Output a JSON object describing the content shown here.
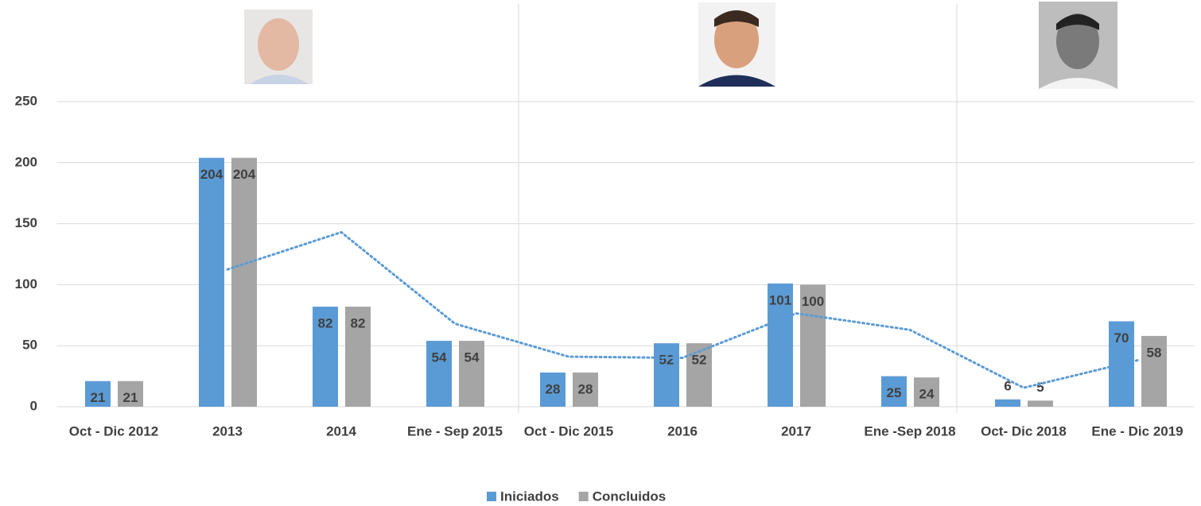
{
  "chart_data": {
    "type": "bar",
    "categories": [
      "Oct - Dic 2012",
      "2013",
      "2014",
      "Ene - Sep 2015",
      "Oct - Dic 2015",
      "2016",
      "2017",
      "Ene -Sep 2018",
      "Oct- Dic 2018",
      "Ene - Dic 2019"
    ],
    "series": [
      {
        "name": "Iniciados",
        "color": "#5b9bd5",
        "values": [
          21,
          204,
          82,
          54,
          28,
          52,
          101,
          25,
          6,
          70
        ]
      },
      {
        "name": "Concluidos",
        "color": "#a5a5a5",
        "values": [
          21,
          204,
          82,
          54,
          28,
          52,
          100,
          24,
          5,
          58
        ]
      }
    ],
    "trendline": {
      "color": "#5b9bd5",
      "values": [
        null,
        112.5,
        143,
        68,
        41,
        40,
        76.5,
        63,
        15.5,
        38
      ]
    },
    "ylim": [
      0,
      250
    ],
    "yticks": [
      0,
      50,
      100,
      150,
      200,
      250
    ],
    "grid": true,
    "legend": "bottom"
  }
}
